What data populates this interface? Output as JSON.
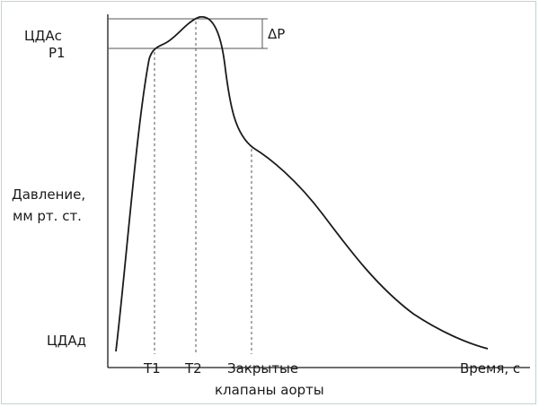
{
  "labels": {
    "systolic": "ЦДАс",
    "p1": "Р1",
    "delta_p": "ΔP",
    "ylabel_line1": "Давление,",
    "ylabel_line2": "мм рт. ст.",
    "diastolic": "ЦДАд",
    "t1": "Т1",
    "t2": "Т2",
    "closed_line1": "Закрытые",
    "closed_line2": "клапаны аорты",
    "xlabel": "Время, с"
  },
  "colors": {
    "frame": "#b9d9cf",
    "ink": "#1a1a1a"
  }
}
